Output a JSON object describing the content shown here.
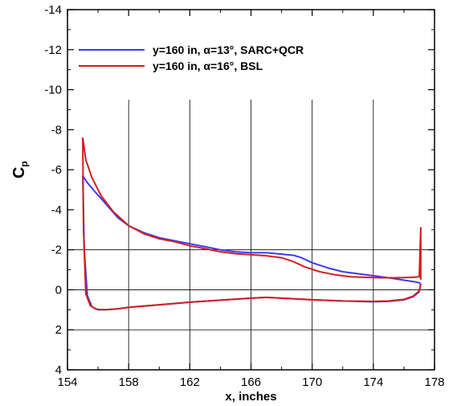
{
  "chart_data": {
    "type": "line",
    "xlabel": "x, inches",
    "ylabel": "C",
    "ylabel_sub": "p",
    "xlim": [
      154,
      178
    ],
    "ylim": [
      4,
      -14
    ],
    "y_inverted": true,
    "xticks": [
      154,
      158,
      162,
      166,
      170,
      174,
      178
    ],
    "yticks": [
      -14,
      -12,
      -10,
      -8,
      -6,
      -4,
      -2,
      0,
      2,
      4
    ],
    "grid": true,
    "legend_position": "top-left",
    "series": [
      {
        "name": "y=160 in, α=13°, SARC+QCR",
        "color": "#3b3bf0",
        "upper": {
          "x": [
            155.0,
            155.3,
            155.8,
            156.5,
            157.3,
            158.0,
            159.0,
            160.0,
            161.0,
            162.0,
            163.0,
            164.0,
            165.0,
            166.0,
            167.0,
            168.0,
            168.8,
            169.3,
            170.0,
            171.0,
            172.0,
            173.0,
            174.0,
            175.0,
            176.0,
            176.7,
            177.0,
            177.1
          ],
          "y": [
            -5.7,
            -5.35,
            -4.9,
            -4.3,
            -3.6,
            -3.2,
            -2.85,
            -2.6,
            -2.45,
            -2.3,
            -2.15,
            -2.0,
            -1.9,
            -1.85,
            -1.85,
            -1.78,
            -1.72,
            -1.6,
            -1.35,
            -1.1,
            -0.9,
            -0.8,
            -0.7,
            -0.6,
            -0.48,
            -0.4,
            -0.35,
            -0.3
          ]
        },
        "lower": {
          "x": [
            155.0,
            155.1,
            155.3,
            155.6,
            156.0,
            156.5,
            157.3,
            158.0,
            160.0,
            162.0,
            164.0,
            166.0,
            167.0,
            168.0,
            170.0,
            172.0,
            174.0,
            175.0,
            176.0,
            176.6,
            177.0,
            177.1
          ],
          "y": [
            -5.7,
            -2.0,
            0.3,
            0.85,
            1.0,
            1.0,
            0.95,
            0.88,
            0.75,
            0.62,
            0.52,
            0.42,
            0.38,
            0.42,
            0.5,
            0.56,
            0.6,
            0.58,
            0.5,
            0.35,
            0.1,
            -0.3
          ]
        }
      },
      {
        "name": "y=160 in, α=16°, BSL",
        "color": "#d11f1f",
        "upper": {
          "x": [
            155.0,
            155.2,
            155.6,
            156.2,
            157.0,
            158.0,
            159.0,
            160.0,
            161.0,
            162.0,
            163.0,
            164.0,
            165.0,
            166.0,
            167.0,
            168.0,
            168.8,
            169.5,
            170.5,
            171.5,
            172.5,
            173.5,
            174.5,
            175.5,
            176.5,
            177.0,
            177.1,
            177.1
          ],
          "y": [
            -7.6,
            -6.5,
            -5.6,
            -4.7,
            -3.9,
            -3.2,
            -2.8,
            -2.55,
            -2.4,
            -2.2,
            -2.05,
            -1.9,
            -1.8,
            -1.75,
            -1.7,
            -1.6,
            -1.4,
            -1.15,
            -0.9,
            -0.75,
            -0.65,
            -0.62,
            -0.6,
            -0.6,
            -0.62,
            -0.65,
            -3.1,
            -0.5
          ]
        },
        "lower": {
          "x": [
            155.0,
            155.05,
            155.2,
            155.5,
            155.9,
            156.5,
            157.3,
            158.0,
            160.0,
            162.0,
            164.0,
            166.0,
            167.0,
            168.0,
            170.0,
            172.0,
            174.0,
            175.0,
            176.0,
            176.6,
            177.0,
            177.1
          ],
          "y": [
            -7.6,
            -3.0,
            0.2,
            0.8,
            0.98,
            1.0,
            0.95,
            0.88,
            0.75,
            0.62,
            0.52,
            0.42,
            0.38,
            0.42,
            0.5,
            0.56,
            0.58,
            0.56,
            0.48,
            0.32,
            0.05,
            -0.3
          ]
        }
      }
    ]
  }
}
